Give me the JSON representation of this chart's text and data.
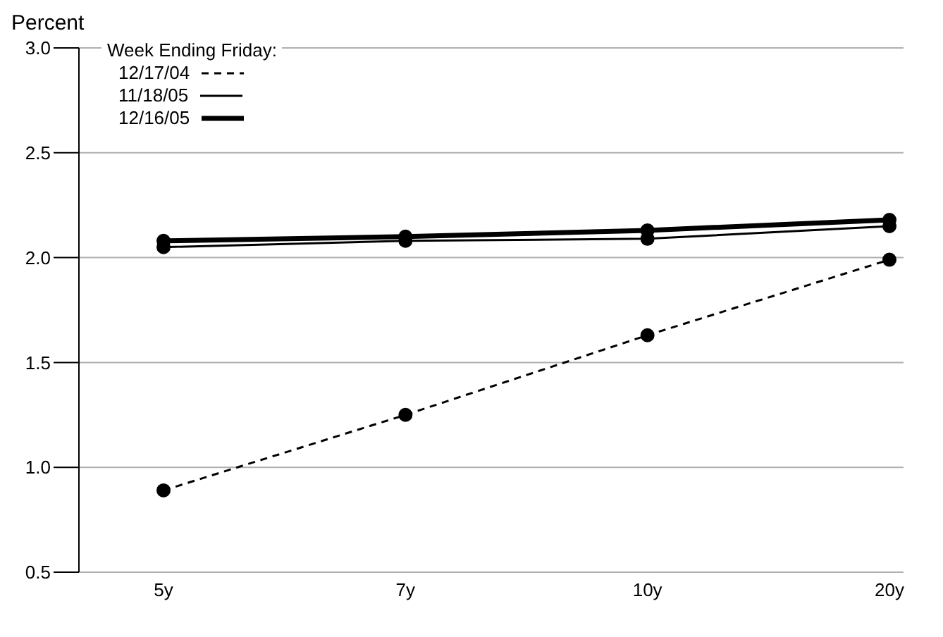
{
  "chart_data": {
    "type": "line",
    "ylabel": "Percent",
    "legend_title": "Week Ending Friday:",
    "categories": [
      "5y",
      "7y",
      "10y",
      "20y"
    ],
    "series": [
      {
        "name": "12/17/04",
        "color": "#000000",
        "line_style": "dashed",
        "values": [
          0.89,
          1.25,
          1.63,
          1.99
        ]
      },
      {
        "name": "11/18/05",
        "color": "#000000",
        "line_style": "solid",
        "values": [
          2.05,
          2.08,
          2.09,
          2.15
        ]
      },
      {
        "name": "12/16/05",
        "color": "#000000",
        "line_style": "solid",
        "values": [
          2.08,
          2.1,
          2.13,
          2.18
        ]
      }
    ],
    "ylim": [
      0.5,
      3.0
    ],
    "yticks": [
      {
        "value": 0.5,
        "label": "0.5"
      },
      {
        "value": 1.0,
        "label": "1.0"
      },
      {
        "value": 1.5,
        "label": "1.5"
      },
      {
        "value": 2.0,
        "label": "2.0"
      },
      {
        "value": 2.5,
        "label": "2.5"
      },
      {
        "value": 3.0,
        "label": "3.0"
      }
    ],
    "grid": "y",
    "legend": "top left",
    "marker": "circle"
  }
}
